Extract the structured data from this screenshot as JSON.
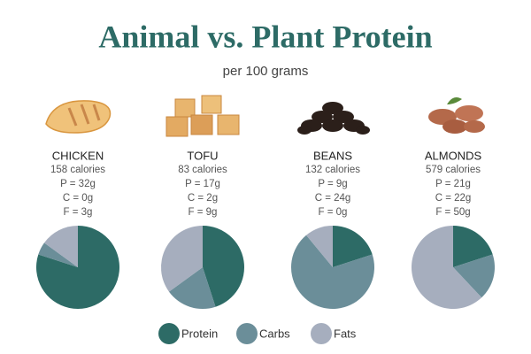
{
  "chart_data": {
    "type": "pie",
    "title": "Animal vs. Plant Protein",
    "subtitle": "per 100 grams",
    "categories": [
      "Protein",
      "Carbs",
      "Fats"
    ],
    "colors": [
      "#2d6b66",
      "#6b8e99",
      "#a6aebe"
    ],
    "series": [
      {
        "name": "CHICKEN",
        "details": [
          "158 calories",
          "P = 32g",
          "C = 0g",
          "F = 3g"
        ],
        "values": [
          80,
          5,
          15
        ]
      },
      {
        "name": "TOFU",
        "details": [
          "83 calories",
          "P = 17g",
          "C = 2g",
          "F = 9g"
        ],
        "values": [
          45,
          20,
          35
        ]
      },
      {
        "name": "BEANS",
        "details": [
          "132 calories",
          "P = 9g",
          "C = 24g",
          "F = 0g"
        ],
        "values": [
          20,
          69,
          11
        ]
      },
      {
        "name": "ALMONDS",
        "details": [
          "579 calories",
          "P = 21g",
          "C = 22g",
          "F = 50g"
        ],
        "values": [
          20,
          18,
          62
        ]
      }
    ]
  }
}
